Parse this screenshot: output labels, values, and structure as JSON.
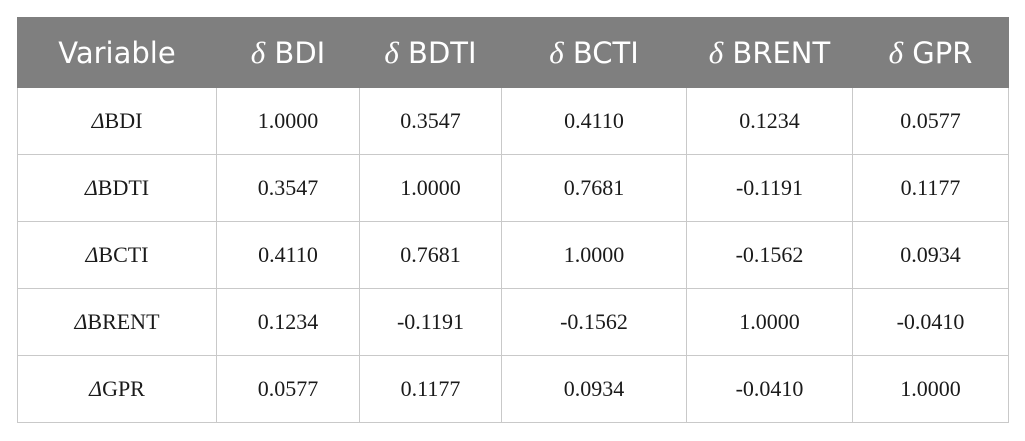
{
  "table": {
    "header": [
      "Variable",
      "δ BDI",
      "δ BDTI",
      "δ BCTI",
      "δ BRENT",
      "δ GPR"
    ],
    "rows": [
      [
        "ΔBDI",
        "1.0000",
        "0.3547",
        "0.4110",
        "0.1234",
        "0.0577"
      ],
      [
        "ΔBDTI",
        "0.3547",
        "1.0000",
        "0.7681",
        "-0.1191",
        "0.1177"
      ],
      [
        "ΔBCTI",
        "0.4110",
        "0.7681",
        "1.0000",
        "-0.1562",
        "0.0934"
      ],
      [
        "ΔBRENT",
        "0.1234",
        "-0.1191",
        "-0.1562",
        "1.0000",
        "-0.0410"
      ],
      [
        "ΔGPR",
        "0.0577",
        "0.1177",
        "0.0934",
        "-0.0410",
        "1.0000"
      ]
    ]
  }
}
